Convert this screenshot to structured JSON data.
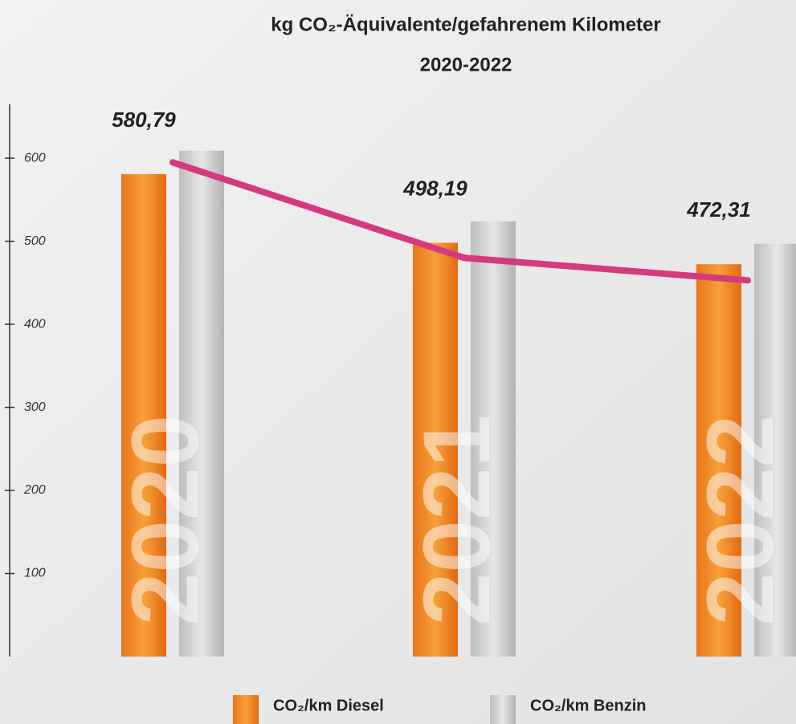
{
  "chart_data": {
    "type": "bar",
    "title": "kg CO₂-Äquivalente/gefahrenem Kilometer",
    "subtitle": "2020-2022",
    "categories": [
      "2020",
      "2021",
      "2022"
    ],
    "series": [
      {
        "name": "CO₂/km Diesel",
        "color": "#f08a1e",
        "values": [
          580.79,
          498.19,
          472.31
        ],
        "value_labels": [
          "580,79",
          "498,19",
          "472,31"
        ]
      },
      {
        "name": "CO₂/km Benzin",
        "color": "#c8c8c8",
        "values": [
          609,
          524,
          497
        ]
      },
      {
        "type": "line",
        "color": "#d63a7e",
        "values": [
          595,
          480,
          453
        ]
      }
    ],
    "ylim": [
      0,
      660
    ],
    "yticks": [
      100,
      200,
      300,
      400,
      500,
      600
    ],
    "legend": "bottom"
  }
}
